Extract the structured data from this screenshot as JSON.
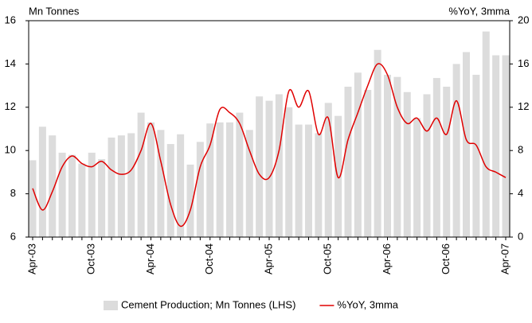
{
  "chart_data": {
    "type": "bar-line",
    "y_axis_label": "Mn Tonnes",
    "y2_axis_label": "%YoY, 3mma",
    "categories": [
      "Apr-03",
      null,
      null,
      null,
      null,
      null,
      "Oct-03",
      null,
      null,
      null,
      null,
      null,
      "Apr-04",
      null,
      null,
      null,
      null,
      null,
      "Oct-04",
      null,
      null,
      null,
      null,
      null,
      "Apr-05",
      null,
      null,
      null,
      null,
      null,
      "Oct-05",
      null,
      null,
      null,
      null,
      null,
      "Apr-06",
      null,
      null,
      null,
      null,
      null,
      "Oct-06",
      null,
      null,
      null,
      null,
      null,
      "Apr-07"
    ],
    "series": [
      {
        "name": "Cement Production; Mn Tonnes (LHS)",
        "color": "#dcdcdc",
        "kind": "bar",
        "axis": "y",
        "values": [
          9.55,
          11.1,
          10.7,
          9.9,
          9.8,
          9.4,
          9.9,
          9.6,
          10.6,
          10.7,
          10.8,
          11.75,
          11.3,
          10.95,
          10.3,
          10.75,
          9.35,
          10.4,
          11.25,
          11.3,
          11.3,
          11.75,
          10.95,
          12.5,
          12.3,
          12.6,
          12.0,
          11.2,
          11.2,
          10.8,
          12.2,
          11.6,
          12.95,
          13.6,
          12.8,
          14.65,
          13.5,
          13.4,
          12.7,
          11.5,
          12.6,
          13.35,
          12.95,
          14.0,
          14.55,
          13.5,
          15.5,
          14.4,
          14.4
        ]
      },
      {
        "name": "%YoY, 3mma",
        "color": "#e00000",
        "kind": "line",
        "axis": "y2",
        "values": [
          4.5,
          2.5,
          4.2,
          6.5,
          7.5,
          6.8,
          6.5,
          7.0,
          6.2,
          5.8,
          6.2,
          8.0,
          10.5,
          7.0,
          3.0,
          1.0,
          2.5,
          6.5,
          8.5,
          11.8,
          11.5,
          10.5,
          8.0,
          5.8,
          5.5,
          8.0,
          13.5,
          12.0,
          13.5,
          9.5,
          11.0,
          5.5,
          9.0,
          11.5,
          14.0,
          16.0,
          15.0,
          12.0,
          10.5,
          11.0,
          9.8,
          11.0,
          9.5,
          12.6,
          9.0,
          8.5,
          6.5,
          6.0,
          5.5
        ]
      }
    ],
    "ylim": [
      6,
      16
    ],
    "yticks": [
      6,
      8,
      10,
      12,
      14,
      16
    ],
    "y2lim": [
      0,
      20
    ],
    "y2ticks": [
      0,
      4,
      8,
      12,
      16,
      20
    ],
    "legend": "bottom"
  }
}
